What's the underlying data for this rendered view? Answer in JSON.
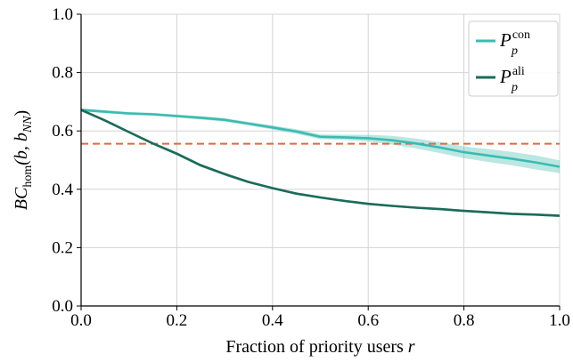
{
  "chart_data": {
    "type": "line",
    "xlabel": "Fraction of priority users",
    "xlabel_var": "r",
    "ylabel": {
      "base": "BC",
      "base_sub": "hom",
      "args_open": "(b, b",
      "args_sub": "NN",
      "args_close": ")"
    },
    "xlim": [
      0,
      1
    ],
    "ylim": [
      0,
      1
    ],
    "xticks": [
      0.0,
      0.2,
      0.4,
      0.6,
      0.8,
      1.0
    ],
    "xtick_labels": [
      "0.0",
      "0.2",
      "0.4",
      "0.6",
      "0.8",
      "1.0"
    ],
    "yticks": [
      0.0,
      0.2,
      0.4,
      0.6,
      0.8,
      1.0
    ],
    "ytick_labels": [
      "0.0",
      "0.2",
      "0.4",
      "0.6",
      "0.8",
      "1.0"
    ],
    "grid": true,
    "legend_position": "top-right",
    "series": [
      {
        "name": "P",
        "name_sup": "con",
        "name_sub": "p",
        "color": "#3bbbb0",
        "x": [
          0.0,
          0.05,
          0.1,
          0.15,
          0.2,
          0.25,
          0.3,
          0.35,
          0.4,
          0.45,
          0.5,
          0.55,
          0.6,
          0.65,
          0.7,
          0.75,
          0.8,
          0.85,
          0.9,
          0.95,
          1.0
        ],
        "y": [
          0.672,
          0.666,
          0.66,
          0.657,
          0.651,
          0.645,
          0.638,
          0.625,
          0.612,
          0.598,
          0.58,
          0.578,
          0.575,
          0.568,
          0.557,
          0.543,
          0.527,
          0.516,
          0.505,
          0.492,
          0.477
        ],
        "y_low": [
          0.667,
          0.661,
          0.655,
          0.652,
          0.646,
          0.639,
          0.632,
          0.619,
          0.605,
          0.59,
          0.572,
          0.569,
          0.563,
          0.553,
          0.54,
          0.524,
          0.507,
          0.494,
          0.482,
          0.468,
          0.455
        ],
        "y_high": [
          0.677,
          0.671,
          0.665,
          0.662,
          0.656,
          0.651,
          0.644,
          0.631,
          0.619,
          0.606,
          0.588,
          0.587,
          0.587,
          0.583,
          0.574,
          0.562,
          0.547,
          0.538,
          0.528,
          0.516,
          0.499
        ]
      },
      {
        "name": "P",
        "name_sup": "ali",
        "name_sub": "p",
        "color": "#1b6b5a",
        "x": [
          0.0,
          0.05,
          0.1,
          0.15,
          0.2,
          0.25,
          0.3,
          0.35,
          0.4,
          0.45,
          0.5,
          0.55,
          0.6,
          0.65,
          0.7,
          0.75,
          0.8,
          0.85,
          0.9,
          0.95,
          1.0
        ],
        "y": [
          0.672,
          0.636,
          0.596,
          0.557,
          0.522,
          0.482,
          0.452,
          0.425,
          0.404,
          0.385,
          0.372,
          0.36,
          0.35,
          0.343,
          0.337,
          0.332,
          0.326,
          0.321,
          0.316,
          0.313,
          0.309
        ],
        "y_low": [
          0.668,
          0.632,
          0.592,
          0.553,
          0.517,
          0.477,
          0.447,
          0.421,
          0.4,
          0.381,
          0.368,
          0.356,
          0.346,
          0.339,
          0.333,
          0.328,
          0.322,
          0.317,
          0.312,
          0.309,
          0.305
        ],
        "y_high": [
          0.676,
          0.64,
          0.6,
          0.561,
          0.527,
          0.487,
          0.457,
          0.429,
          0.408,
          0.389,
          0.376,
          0.364,
          0.354,
          0.347,
          0.341,
          0.336,
          0.33,
          0.325,
          0.32,
          0.317,
          0.313
        ]
      }
    ],
    "reference_line": {
      "y": 0.556,
      "color": "#e06a3b",
      "style": "dashed"
    }
  }
}
